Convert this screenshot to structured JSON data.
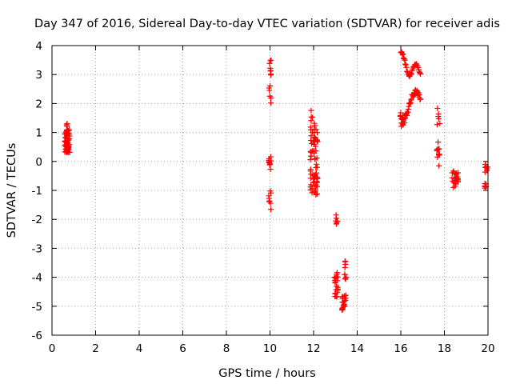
{
  "chart_data": {
    "type": "scatter",
    "title": "Day 347 of 2016, Sidereal Day-to-day VTEC variation (SDTVAR) for receiver adis",
    "xlabel": "GPS time / hours",
    "ylabel": "SDTVAR / TECUs",
    "xlim": [
      0,
      20
    ],
    "ylim": [
      -6,
      4
    ],
    "xticks": [
      0,
      2,
      4,
      6,
      8,
      10,
      12,
      14,
      16,
      18,
      20
    ],
    "yticks": [
      -6,
      -5,
      -4,
      -3,
      -2,
      -1,
      0,
      1,
      2,
      3,
      4
    ],
    "grid": true,
    "marker": "+",
    "marker_color": "#ff0000",
    "series": [
      {
        "name": "SDTVAR",
        "clusters": [
          {
            "x0": 0.58,
            "x1": 0.82,
            "y0": 0.3,
            "y1": 1.1,
            "n": 60
          },
          {
            "x0": 0.66,
            "x1": 0.7,
            "y0": 1.1,
            "y1": 1.35,
            "n": 3
          },
          {
            "x0": 9.93,
            "x1": 10.05,
            "y0": 2.0,
            "y1": 3.55,
            "n": 14
          },
          {
            "x0": 9.93,
            "x1": 10.05,
            "y0": -0.3,
            "y1": 0.2,
            "n": 10
          },
          {
            "x0": 9.93,
            "x1": 10.05,
            "y0": -1.7,
            "y1": -0.9,
            "n": 8
          },
          {
            "x0": 11.85,
            "x1": 12.2,
            "y0": -1.15,
            "y1": 1.4,
            "n": 70
          },
          {
            "x0": 11.88,
            "x1": 11.95,
            "y0": 1.4,
            "y1": 1.85,
            "n": 4
          },
          {
            "x0": 13.0,
            "x1": 13.1,
            "y0": -2.25,
            "y1": -1.8,
            "n": 7
          },
          {
            "x0": 12.95,
            "x1": 13.12,
            "y0": -4.7,
            "y1": -3.8,
            "n": 24
          },
          {
            "x0": 13.3,
            "x1": 13.48,
            "y0": -5.15,
            "y1": -4.6,
            "n": 18
          },
          {
            "x0": 13.35,
            "x1": 13.5,
            "y0": -4.1,
            "y1": -3.4,
            "n": 9
          },
          {
            "x0": 15.97,
            "x1": 16.1,
            "y0": 1.1,
            "y1": 1.7,
            "n": 10
          },
          {
            "x0": 17.65,
            "x1": 17.8,
            "y0": 1.25,
            "y1": 1.85,
            "n": 6
          },
          {
            "x0": 17.65,
            "x1": 17.8,
            "y0": -0.2,
            "y1": 0.75,
            "n": 12
          },
          {
            "x0": 18.35,
            "x1": 18.65,
            "y0": -0.9,
            "y1": -0.3,
            "n": 26
          },
          {
            "x0": 19.85,
            "x1": 20.0,
            "y0": -0.4,
            "y1": -0.05,
            "n": 8
          },
          {
            "x0": 19.85,
            "x1": 20.0,
            "y0": -0.95,
            "y1": -0.75,
            "n": 6
          }
        ],
        "curves": [
          {
            "points": [
              [
                16.0,
                3.75
              ],
              [
                16.1,
                3.7
              ],
              [
                16.2,
                3.4
              ],
              [
                16.3,
                3.1
              ],
              [
                16.4,
                2.95
              ],
              [
                16.5,
                3.05
              ],
              [
                16.6,
                3.3
              ],
              [
                16.7,
                3.35
              ],
              [
                16.8,
                3.25
              ],
              [
                16.9,
                3.0
              ]
            ],
            "n": 36,
            "spread": 0.05
          },
          {
            "points": [
              [
                16.1,
                1.3
              ],
              [
                16.2,
                1.5
              ],
              [
                16.3,
                1.7
              ],
              [
                16.4,
                1.95
              ],
              [
                16.5,
                2.2
              ],
              [
                16.6,
                2.35
              ],
              [
                16.7,
                2.4
              ],
              [
                16.8,
                2.3
              ],
              [
                16.9,
                2.2
              ]
            ],
            "n": 40,
            "spread": 0.1
          }
        ]
      }
    ]
  }
}
